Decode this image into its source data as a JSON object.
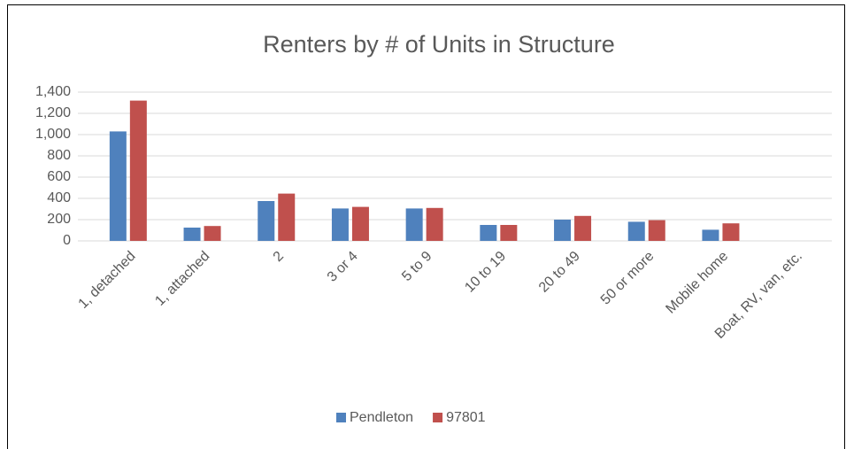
{
  "chart_data": {
    "type": "bar",
    "title": "Renters by # of Units in Structure",
    "categories": [
      "1, detached",
      "1, attached",
      "2",
      "3 or 4",
      "5 to 9",
      "10 to 19",
      "20 to 49",
      "50 or more",
      "Mobile home",
      "Boat, RV, van, etc."
    ],
    "series": [
      {
        "name": "Pendleton",
        "color": "#4f81bd",
        "values": [
          1030,
          125,
          375,
          305,
          305,
          150,
          200,
          180,
          105,
          0
        ]
      },
      {
        "name": "97801",
        "color": "#c0504d",
        "values": [
          1320,
          140,
          445,
          320,
          310,
          150,
          235,
          195,
          165,
          0
        ]
      }
    ],
    "ylim": [
      0,
      1400
    ],
    "yticks": [
      0,
      200,
      400,
      600,
      800,
      {
        "value": 1000,
        "label": "1,000"
      },
      {
        "value": 1200,
        "label": "1,200"
      },
      {
        "value": 1400,
        "label": "1,400"
      }
    ],
    "grid": true,
    "legend": "bottom"
  }
}
